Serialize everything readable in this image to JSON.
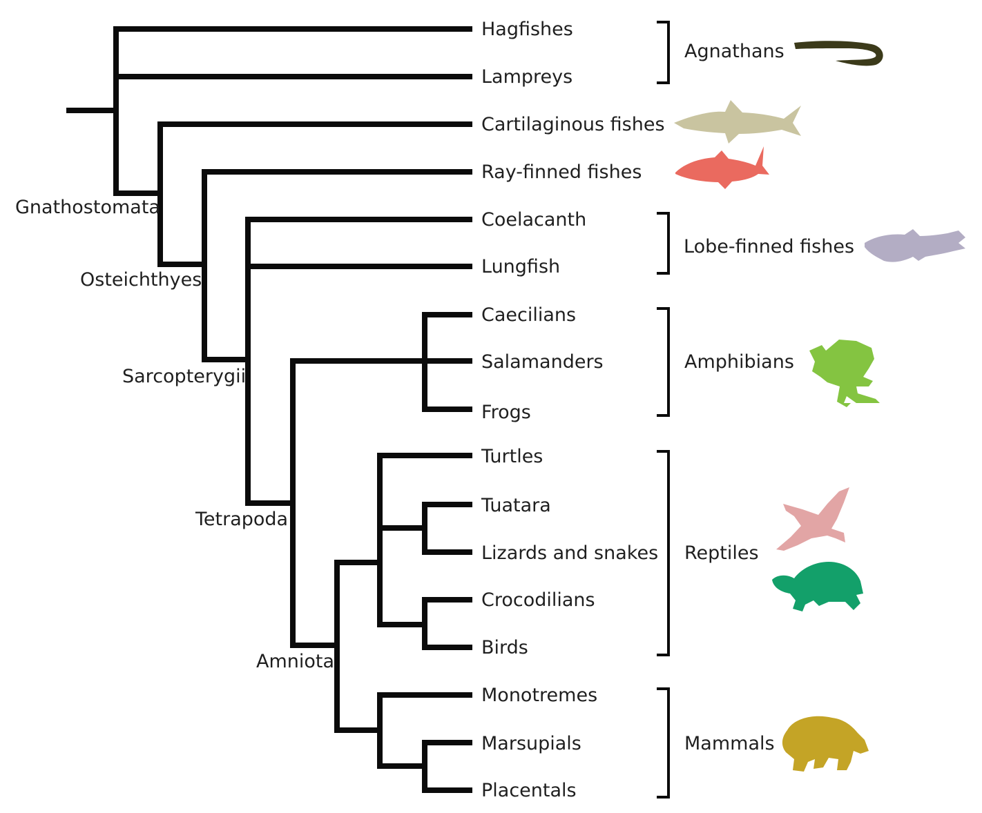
{
  "taxa": [
    "Hagfishes",
    "Lampreys",
    "Cartilaginous fishes",
    "Ray-finned fishes",
    "Coelacanth",
    "Lungfish",
    "Caecilians",
    "Salamanders",
    "Frogs",
    "Turtles",
    "Tuatara",
    "Lizards and snakes",
    "Crocodilians",
    "Birds",
    "Monotremes",
    "Marsupials",
    "Placentals"
  ],
  "clades": [
    "Gnathostomata",
    "Osteichthyes",
    "Sarcopterygii",
    "Tetrapoda",
    "Amniota"
  ],
  "groups": [
    "Agnathans",
    "Lobe-finned fishes",
    "Amphibians",
    "Reptiles",
    "Mammals"
  ],
  "colors": {
    "line": "#0b0b0b",
    "lamprey_silhouette": "#3b3a1a",
    "shark_silhouette": "#c9c4a0",
    "ray_finned_silhouette": "#ea6a5f",
    "coelacanth_silhouette": "#b3adc4",
    "frog_silhouette": "#84c441",
    "bird_silhouette": "#e2a5a5",
    "turtle_silhouette": "#13a06a",
    "bear_silhouette": "#c4a426"
  }
}
